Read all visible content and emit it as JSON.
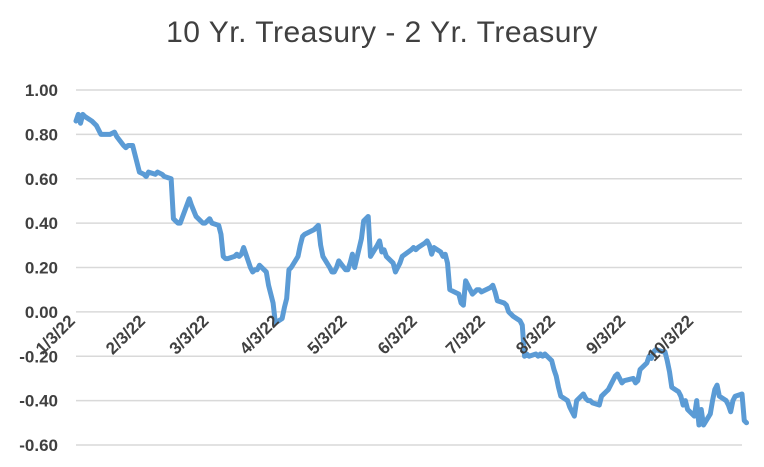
{
  "chart_data": {
    "type": "line",
    "title": "10 Yr. Treasury - 2 Yr. Treasury",
    "xlabel": "",
    "ylabel": "",
    "ylim": [
      -0.6,
      1.0
    ],
    "xlim": [
      "2022-01-03",
      "2022-10-24"
    ],
    "grid": true,
    "legend": "none",
    "y_ticks": [
      "1.00",
      "0.80",
      "0.60",
      "0.40",
      "0.20",
      "0.00",
      "-0.20",
      "-0.40",
      "-0.60"
    ],
    "x_ticks": [
      {
        "date": "2022-01-03",
        "label": "1/3/22"
      },
      {
        "date": "2022-02-03",
        "label": "2/3/22"
      },
      {
        "date": "2022-03-03",
        "label": "3/3/22"
      },
      {
        "date": "2022-04-03",
        "label": "4/3/22"
      },
      {
        "date": "2022-05-03",
        "label": "5/3/22"
      },
      {
        "date": "2022-06-03",
        "label": "6/3/22"
      },
      {
        "date": "2022-07-03",
        "label": "7/3/22"
      },
      {
        "date": "2022-08-03",
        "label": "8/3/22"
      },
      {
        "date": "2022-09-03",
        "label": "9/3/22"
      },
      {
        "date": "2022-10-03",
        "label": "10/3/22"
      }
    ],
    "series": [
      {
        "color": "#5b9bd5",
        "points": [
          [
            "2022-01-03",
            0.86
          ],
          [
            "2022-01-04",
            0.89
          ],
          [
            "2022-01-05",
            0.85
          ],
          [
            "2022-01-06",
            0.89
          ],
          [
            "2022-01-07",
            0.88
          ],
          [
            "2022-01-10",
            0.86
          ],
          [
            "2022-01-12",
            0.84
          ],
          [
            "2022-01-14",
            0.8
          ],
          [
            "2022-01-18",
            0.8
          ],
          [
            "2022-01-20",
            0.81
          ],
          [
            "2022-01-21",
            0.79
          ],
          [
            "2022-01-24",
            0.75
          ],
          [
            "2022-01-25",
            0.74
          ],
          [
            "2022-01-26",
            0.75
          ],
          [
            "2022-01-28",
            0.75
          ],
          [
            "2022-01-31",
            0.63
          ],
          [
            "2022-02-02",
            0.62
          ],
          [
            "2022-02-03",
            0.61
          ],
          [
            "2022-02-04",
            0.63
          ],
          [
            "2022-02-07",
            0.62
          ],
          [
            "2022-02-08",
            0.63
          ],
          [
            "2022-02-10",
            0.62
          ],
          [
            "2022-02-11",
            0.61
          ],
          [
            "2022-02-14",
            0.6
          ],
          [
            "2022-02-15",
            0.42
          ],
          [
            "2022-02-16",
            0.41
          ],
          [
            "2022-02-17",
            0.4
          ],
          [
            "2022-02-18",
            0.4
          ],
          [
            "2022-02-22",
            0.51
          ],
          [
            "2022-02-23",
            0.48
          ],
          [
            "2022-02-25",
            0.43
          ],
          [
            "2022-02-28",
            0.4
          ],
          [
            "2022-03-01",
            0.4
          ],
          [
            "2022-03-02",
            0.41
          ],
          [
            "2022-03-03",
            0.42
          ],
          [
            "2022-03-04",
            0.4
          ],
          [
            "2022-03-07",
            0.39
          ],
          [
            "2022-03-08",
            0.35
          ],
          [
            "2022-03-09",
            0.25
          ],
          [
            "2022-03-10",
            0.24
          ],
          [
            "2022-03-11",
            0.24
          ],
          [
            "2022-03-14",
            0.25
          ],
          [
            "2022-03-15",
            0.26
          ],
          [
            "2022-03-16",
            0.25
          ],
          [
            "2022-03-17",
            0.26
          ],
          [
            "2022-03-18",
            0.29
          ],
          [
            "2022-03-21",
            0.2
          ],
          [
            "2022-03-22",
            0.18
          ],
          [
            "2022-03-23",
            0.19
          ],
          [
            "2022-03-24",
            0.19
          ],
          [
            "2022-03-25",
            0.21
          ],
          [
            "2022-03-28",
            0.18
          ],
          [
            "2022-03-29",
            0.12
          ],
          [
            "2022-03-30",
            0.08
          ],
          [
            "2022-03-31",
            0.04
          ],
          [
            "2022-04-01",
            -0.05
          ],
          [
            "2022-04-04",
            -0.03
          ],
          [
            "2022-04-05",
            0.02
          ],
          [
            "2022-04-06",
            0.06
          ],
          [
            "2022-04-07",
            0.19
          ],
          [
            "2022-04-08",
            0.2
          ],
          [
            "2022-04-11",
            0.25
          ],
          [
            "2022-04-12",
            0.3
          ],
          [
            "2022-04-13",
            0.34
          ],
          [
            "2022-04-14",
            0.35
          ],
          [
            "2022-04-18",
            0.37
          ],
          [
            "2022-04-19",
            0.38
          ],
          [
            "2022-04-20",
            0.39
          ],
          [
            "2022-04-21",
            0.3
          ],
          [
            "2022-04-22",
            0.25
          ],
          [
            "2022-04-25",
            0.2
          ],
          [
            "2022-04-26",
            0.18
          ],
          [
            "2022-04-27",
            0.18
          ],
          [
            "2022-04-28",
            0.2
          ],
          [
            "2022-04-29",
            0.23
          ],
          [
            "2022-05-02",
            0.19
          ],
          [
            "2022-05-03",
            0.19
          ],
          [
            "2022-05-04",
            0.22
          ],
          [
            "2022-05-05",
            0.26
          ],
          [
            "2022-05-06",
            0.2
          ],
          [
            "2022-05-09",
            0.33
          ],
          [
            "2022-05-10",
            0.41
          ],
          [
            "2022-05-11",
            0.42
          ],
          [
            "2022-05-12",
            0.43
          ],
          [
            "2022-05-13",
            0.25
          ],
          [
            "2022-05-16",
            0.3
          ],
          [
            "2022-05-17",
            0.32
          ],
          [
            "2022-05-18",
            0.27
          ],
          [
            "2022-05-19",
            0.28
          ],
          [
            "2022-05-20",
            0.25
          ],
          [
            "2022-05-23",
            0.22
          ],
          [
            "2022-05-24",
            0.18
          ],
          [
            "2022-05-25",
            0.2
          ],
          [
            "2022-05-26",
            0.22
          ],
          [
            "2022-05-27",
            0.25
          ],
          [
            "2022-05-31",
            0.28
          ],
          [
            "2022-06-01",
            0.29
          ],
          [
            "2022-06-02",
            0.28
          ],
          [
            "2022-06-03",
            0.29
          ],
          [
            "2022-06-06",
            0.31
          ],
          [
            "2022-06-07",
            0.32
          ],
          [
            "2022-06-08",
            0.3
          ],
          [
            "2022-06-09",
            0.26
          ],
          [
            "2022-06-10",
            0.29
          ],
          [
            "2022-06-13",
            0.27
          ],
          [
            "2022-06-14",
            0.25
          ],
          [
            "2022-06-15",
            0.26
          ],
          [
            "2022-06-16",
            0.22
          ],
          [
            "2022-06-17",
            0.1
          ],
          [
            "2022-06-21",
            0.08
          ],
          [
            "2022-06-22",
            0.04
          ],
          [
            "2022-06-23",
            0.03
          ],
          [
            "2022-06-24",
            0.14
          ],
          [
            "2022-06-27",
            0.08
          ],
          [
            "2022-06-28",
            0.09
          ],
          [
            "2022-06-29",
            0.1
          ],
          [
            "2022-06-30",
            0.1
          ],
          [
            "2022-07-01",
            0.09
          ],
          [
            "2022-07-05",
            0.11
          ],
          [
            "2022-07-06",
            0.12
          ],
          [
            "2022-07-07",
            0.09
          ],
          [
            "2022-07-08",
            0.05
          ],
          [
            "2022-07-11",
            0.04
          ],
          [
            "2022-07-12",
            0.03
          ],
          [
            "2022-07-13",
            0.0
          ],
          [
            "2022-07-14",
            -0.01
          ],
          [
            "2022-07-15",
            -0.02
          ],
          [
            "2022-07-18",
            -0.04
          ],
          [
            "2022-07-19",
            -0.06
          ],
          [
            "2022-07-20",
            -0.2
          ],
          [
            "2022-07-21",
            -0.19
          ],
          [
            "2022-07-22",
            -0.2
          ],
          [
            "2022-07-25",
            -0.19
          ],
          [
            "2022-07-26",
            -0.2
          ],
          [
            "2022-07-27",
            -0.19
          ],
          [
            "2022-07-28",
            -0.2
          ],
          [
            "2022-07-29",
            -0.19
          ],
          [
            "2022-08-01",
            -0.22
          ],
          [
            "2022-08-02",
            -0.26
          ],
          [
            "2022-08-03",
            -0.29
          ],
          [
            "2022-08-04",
            -0.34
          ],
          [
            "2022-08-05",
            -0.38
          ],
          [
            "2022-08-08",
            -0.4
          ],
          [
            "2022-08-09",
            -0.43
          ],
          [
            "2022-08-10",
            -0.45
          ],
          [
            "2022-08-11",
            -0.47
          ],
          [
            "2022-08-12",
            -0.4
          ],
          [
            "2022-08-15",
            -0.37
          ],
          [
            "2022-08-16",
            -0.39
          ],
          [
            "2022-08-17",
            -0.4
          ],
          [
            "2022-08-18",
            -0.4
          ],
          [
            "2022-08-19",
            -0.41
          ],
          [
            "2022-08-22",
            -0.42
          ],
          [
            "2022-08-23",
            -0.38
          ],
          [
            "2022-08-24",
            -0.37
          ],
          [
            "2022-08-25",
            -0.36
          ],
          [
            "2022-08-26",
            -0.35
          ],
          [
            "2022-08-29",
            -0.29
          ],
          [
            "2022-08-30",
            -0.28
          ],
          [
            "2022-08-31",
            -0.3
          ],
          [
            "2022-09-01",
            -0.32
          ],
          [
            "2022-09-02",
            -0.31
          ],
          [
            "2022-09-06",
            -0.3
          ],
          [
            "2022-09-07",
            -0.32
          ],
          [
            "2022-09-08",
            -0.31
          ],
          [
            "2022-09-09",
            -0.26
          ],
          [
            "2022-09-12",
            -0.23
          ],
          [
            "2022-09-13",
            -0.2
          ],
          [
            "2022-09-14",
            -0.21
          ],
          [
            "2022-09-15",
            -0.18
          ],
          [
            "2022-09-16",
            -0.17
          ],
          [
            "2022-09-19",
            -0.18
          ],
          [
            "2022-09-20",
            -0.18
          ],
          [
            "2022-09-21",
            -0.22
          ],
          [
            "2022-09-22",
            -0.27
          ],
          [
            "2022-09-23",
            -0.34
          ],
          [
            "2022-09-26",
            -0.36
          ],
          [
            "2022-09-27",
            -0.38
          ],
          [
            "2022-09-28",
            -0.42
          ],
          [
            "2022-09-29",
            -0.4
          ],
          [
            "2022-09-30",
            -0.44
          ],
          [
            "2022-10-03",
            -0.47
          ],
          [
            "2022-10-04",
            -0.4
          ],
          [
            "2022-10-05",
            -0.51
          ],
          [
            "2022-10-06",
            -0.44
          ],
          [
            "2022-10-07",
            -0.51
          ],
          [
            "2022-10-10",
            -0.46
          ],
          [
            "2022-10-11",
            -0.4
          ],
          [
            "2022-10-12",
            -0.35
          ],
          [
            "2022-10-13",
            -0.33
          ],
          [
            "2022-10-14",
            -0.38
          ],
          [
            "2022-10-17",
            -0.4
          ],
          [
            "2022-10-18",
            -0.42
          ],
          [
            "2022-10-19",
            -0.45
          ],
          [
            "2022-10-20",
            -0.4
          ],
          [
            "2022-10-21",
            -0.38
          ],
          [
            "2022-10-24",
            -0.37
          ],
          [
            "2022-10-25",
            -0.49
          ],
          [
            "2022-10-26",
            -0.5
          ]
        ]
      }
    ]
  }
}
